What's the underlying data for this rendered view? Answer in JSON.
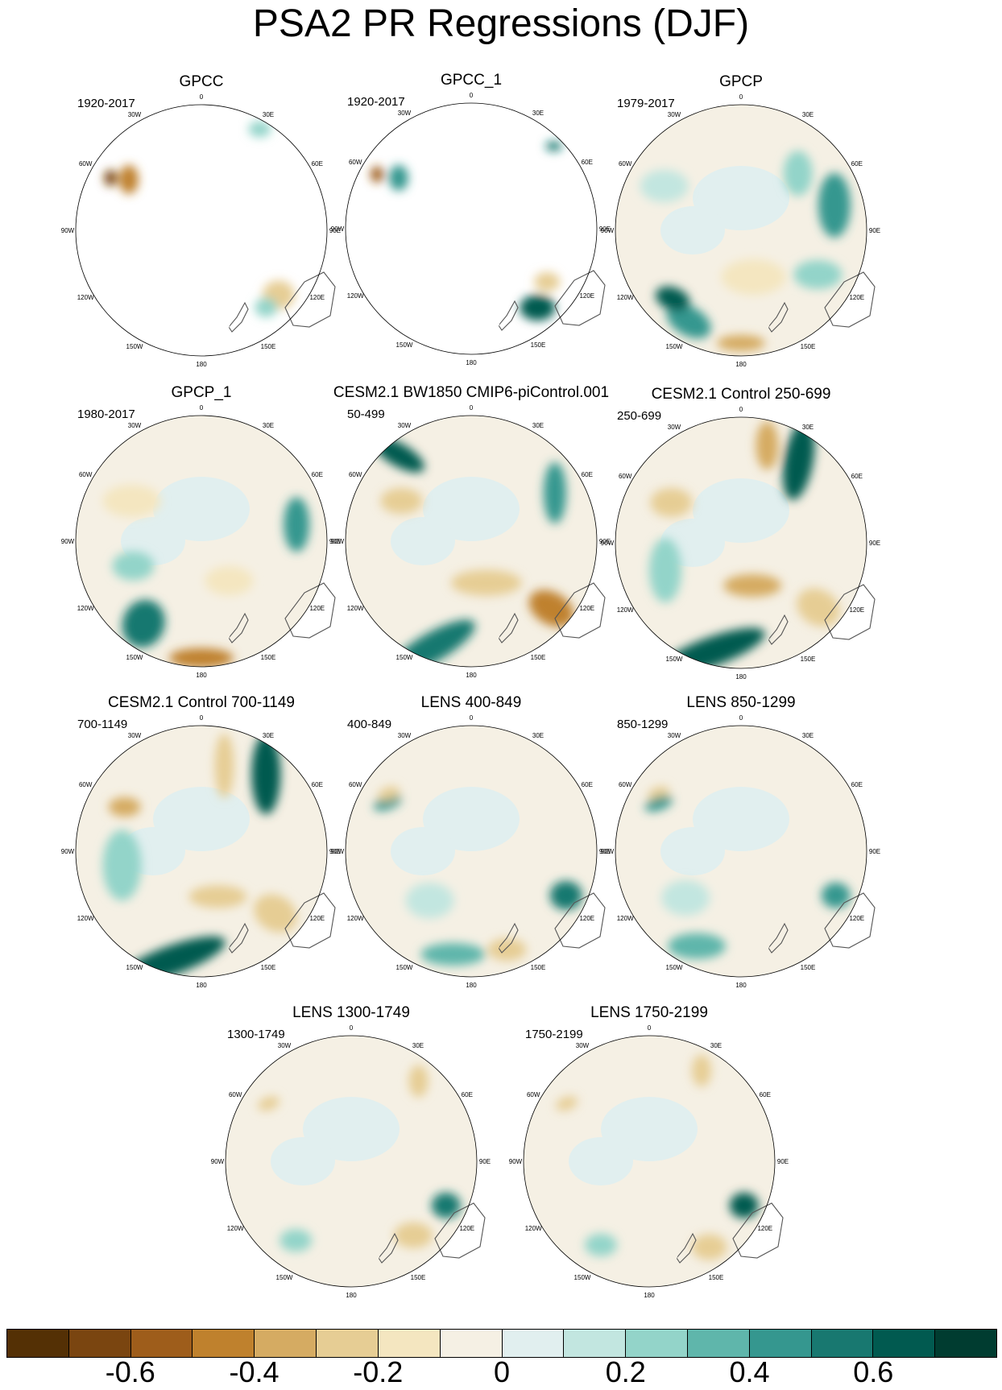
{
  "title": "PSA2 PR Regressions (DJF)",
  "panels": [
    {
      "title": "GPCC",
      "years": "1920-2017",
      "coverage": "land"
    },
    {
      "title": "GPCC_1",
      "years": "1920-2017",
      "coverage": "land"
    },
    {
      "title": "GPCP",
      "years": "1979-2017",
      "coverage": "full"
    },
    {
      "title": "GPCP_1",
      "years": "1980-2017",
      "coverage": "full"
    },
    {
      "title": "CESM2.1 BW1850 CMIP6-piControl.001",
      "years": "50-499",
      "coverage": "full"
    },
    {
      "title": "CESM2.1 Control 250-699",
      "years": "250-699",
      "coverage": "full"
    },
    {
      "title": "CESM2.1 Control 700-1149",
      "years": "700-1149",
      "coverage": "full"
    },
    {
      "title": "LENS 400-849",
      "years": "400-849",
      "coverage": "full"
    },
    {
      "title": "LENS 850-1299",
      "years": "850-1299",
      "coverage": "full"
    },
    {
      "title": "LENS 1300-1749",
      "years": "1300-1749",
      "coverage": "full"
    },
    {
      "title": "LENS 1750-2199",
      "years": "1750-2199",
      "coverage": "full"
    }
  ],
  "longitude_labels": [
    "0",
    "30E",
    "60E",
    "90E",
    "120E",
    "150E",
    "180",
    "150W",
    "120W",
    "90W",
    "60W",
    "30W"
  ],
  "colorbar": {
    "colors": [
      "#543005",
      "#7a4510",
      "#9e5d1b",
      "#bf812d",
      "#d5ab62",
      "#e6cd94",
      "#f4e6c0",
      "#f5f0e4",
      "#e1efef",
      "#c2e6e0",
      "#93d4c9",
      "#5fb6ab",
      "#35978f",
      "#187870",
      "#015a50",
      "#003c30"
    ],
    "tick_values": [
      -0.6,
      -0.4,
      -0.2,
      0,
      0.2,
      0.4,
      0.6
    ],
    "tick_labels": [
      "-0.6",
      "-0.4",
      "-0.2",
      "0",
      "0.2",
      "0.4",
      "0.6"
    ],
    "min": -0.8,
    "max": 0.8
  }
}
